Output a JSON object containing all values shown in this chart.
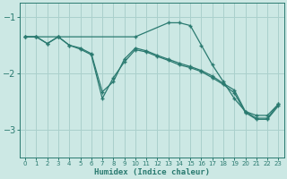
{
  "xlabel": "Humidex (Indice chaleur)",
  "bg_color": "#cce8e4",
  "grid_color": "#aad0cc",
  "line_color": "#2a7a70",
  "xlim": [
    -0.5,
    23.5
  ],
  "ylim": [
    -3.5,
    -0.75
  ],
  "yticks": [
    -3,
    -2,
    -1
  ],
  "xticks": [
    0,
    1,
    2,
    3,
    4,
    5,
    6,
    7,
    8,
    9,
    10,
    11,
    12,
    13,
    14,
    15,
    16,
    17,
    18,
    19,
    20,
    21,
    22,
    23
  ],
  "curve1_x": [
    0,
    1,
    3,
    10,
    13,
    14,
    15,
    16,
    17,
    18,
    19,
    20,
    21,
    22,
    23
  ],
  "curve1_y": [
    -1.35,
    -1.35,
    -1.35,
    -1.35,
    -1.1,
    -1.1,
    -1.15,
    -1.5,
    -1.85,
    -2.15,
    -2.45,
    -2.68,
    -2.75,
    -2.75,
    -2.55
  ],
  "curve2_x": [
    0,
    1,
    2,
    3,
    4,
    5,
    6,
    7,
    8,
    9,
    10,
    11,
    12,
    13,
    14,
    15,
    16,
    17,
    18,
    19,
    20,
    21,
    22,
    23
  ],
  "curve2_y": [
    -1.35,
    -1.35,
    -1.47,
    -1.35,
    -1.5,
    -1.55,
    -1.65,
    -2.33,
    -2.15,
    -1.75,
    -1.55,
    -1.6,
    -1.68,
    -1.75,
    -1.82,
    -1.88,
    -1.95,
    -2.05,
    -2.18,
    -2.3,
    -2.68,
    -2.8,
    -2.8,
    -2.55
  ],
  "curve3_x": [
    0,
    1,
    2,
    3,
    4,
    5,
    6,
    7,
    8,
    9,
    10,
    11,
    12,
    13,
    14,
    15,
    16,
    17,
    18,
    19,
    20,
    21,
    22,
    23
  ],
  "curve3_y": [
    -1.35,
    -1.35,
    -1.47,
    -1.35,
    -1.5,
    -1.57,
    -1.67,
    -2.45,
    -2.08,
    -1.8,
    -1.58,
    -1.62,
    -1.7,
    -1.77,
    -1.85,
    -1.9,
    -1.97,
    -2.08,
    -2.2,
    -2.35,
    -2.7,
    -2.82,
    -2.82,
    -2.58
  ]
}
